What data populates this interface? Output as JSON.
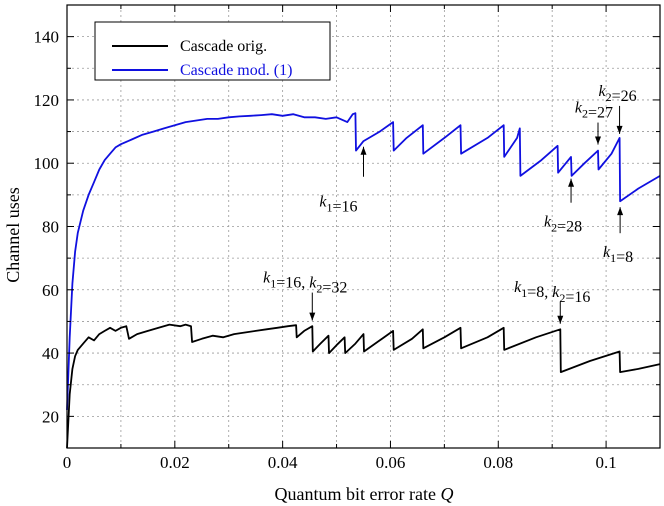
{
  "chart_data": {
    "type": "line",
    "xlabel": "Quantum bit error rate",
    "xlabel_var": "Q",
    "ylabel": "Channel uses",
    "xlim": [
      0,
      0.11
    ],
    "ylim": [
      10,
      150
    ],
    "x_ticks": [
      0,
      0.02,
      0.04,
      0.06,
      0.08,
      0.1
    ],
    "x_tick_labels": [
      "0",
      "0.02",
      "0.04",
      "0.06",
      "0.08",
      "0.1"
    ],
    "y_ticks": [
      20,
      40,
      60,
      80,
      100,
      120,
      140
    ],
    "y_tick_labels": [
      "20",
      "40",
      "60",
      "80",
      "100",
      "120",
      "140"
    ],
    "grid": true,
    "legend_position": "top-left",
    "series": [
      {
        "name": "Cascade orig.",
        "color": "#000000",
        "x": [
          0,
          0.0005,
          0.001,
          0.0015,
          0.002,
          0.003,
          0.004,
          0.005,
          0.006,
          0.007,
          0.008,
          0.009,
          0.01,
          0.011,
          0.0115,
          0.013,
          0.015,
          0.017,
          0.019,
          0.021,
          0.022,
          0.023,
          0.0232,
          0.025,
          0.027,
          0.029,
          0.031,
          0.033,
          0.035,
          0.037,
          0.039,
          0.041,
          0.0425,
          0.0426,
          0.044,
          0.0455,
          0.0456,
          0.047,
          0.0485,
          0.0486,
          0.05,
          0.0515,
          0.0516,
          0.0535,
          0.055,
          0.0551,
          0.058,
          0.0605,
          0.0606,
          0.064,
          0.066,
          0.0661,
          0.07,
          0.073,
          0.0731,
          0.078,
          0.081,
          0.0811,
          0.087,
          0.0915,
          0.0916,
          0.097,
          0.1025,
          0.1026,
          0.106,
          0.11
        ],
        "values": [
          10,
          27,
          35,
          39,
          41,
          43,
          45,
          44,
          46,
          47,
          48,
          47,
          48,
          48.5,
          44.5,
          46,
          47,
          48,
          49,
          48.5,
          49,
          48.5,
          43.5,
          44.5,
          45.5,
          45,
          46,
          46.5,
          47,
          47.5,
          48,
          48.5,
          48.8,
          45,
          47,
          48.5,
          40.5,
          43,
          45.5,
          40,
          42.5,
          45,
          40,
          43,
          46,
          40.5,
          44,
          47,
          41,
          44.5,
          47.5,
          41.5,
          45,
          48,
          41.5,
          45,
          48,
          41,
          45,
          47.5,
          34,
          37.5,
          40.5,
          34,
          35,
          36.5
        ]
      },
      {
        "name": "Cascade mod. (1)",
        "color": "#1010e0",
        "x": [
          0,
          0.0005,
          0.001,
          0.0015,
          0.002,
          0.003,
          0.004,
          0.005,
          0.006,
          0.007,
          0.008,
          0.009,
          0.01,
          0.012,
          0.014,
          0.016,
          0.018,
          0.02,
          0.022,
          0.024,
          0.026,
          0.028,
          0.03,
          0.032,
          0.034,
          0.036,
          0.038,
          0.04,
          0.042,
          0.044,
          0.046,
          0.048,
          0.05,
          0.052,
          0.053,
          0.0535,
          0.0536,
          0.055,
          0.058,
          0.0605,
          0.0606,
          0.063,
          0.066,
          0.0661,
          0.07,
          0.073,
          0.0731,
          0.078,
          0.081,
          0.0811,
          0.0835,
          0.084,
          0.0841,
          0.088,
          0.091,
          0.0911,
          0.0935,
          0.0936,
          0.096,
          0.0985,
          0.0986,
          0.101,
          0.1025,
          0.1026,
          0.106,
          0.11
        ],
        "values": [
          22,
          45,
          62,
          72,
          78,
          85,
          90,
          94,
          98,
          101,
          103,
          105,
          106,
          107.5,
          109,
          110,
          111,
          112,
          113,
          113.5,
          114,
          114,
          114.5,
          114.8,
          115,
          115.2,
          115.5,
          115,
          115.5,
          114.5,
          114.5,
          114,
          114.5,
          113,
          115.5,
          115.8,
          104,
          107,
          110,
          113,
          104,
          108,
          112,
          103,
          108,
          112,
          103,
          108,
          112,
          102,
          108,
          111,
          96,
          101,
          105.5,
          97,
          102,
          96,
          100,
          104,
          98,
          103,
          108,
          88,
          92,
          96
        ]
      }
    ],
    "annotations": [
      {
        "text": "k1=16",
        "x": 0.055,
        "y": 109
      },
      {
        "text": "k1=16, k2=32",
        "x": 0.0455,
        "y": 49
      },
      {
        "text": "k1=8, k2=16",
        "x": 0.0915,
        "y": 48
      },
      {
        "text": "k2=26",
        "x": 0.1025,
        "y": 108
      },
      {
        "text": "k2=27",
        "x": 0.0985,
        "y": 104
      },
      {
        "text": "k2=28",
        "x": 0.0935,
        "y": 97
      },
      {
        "text": "k1=8",
        "x": 0.1026,
        "y": 88
      }
    ]
  }
}
